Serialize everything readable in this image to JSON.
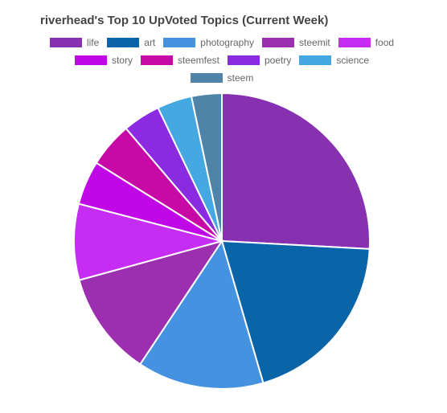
{
  "chart_data": {
    "type": "pie",
    "title": "riverhead's Top 10 UpVoted Topics (Current Week)",
    "categories": [
      "life",
      "art",
      "photography",
      "steemit",
      "food",
      "story",
      "steemfest",
      "poetry",
      "science",
      "steem"
    ],
    "values": [
      25.8,
      19.6,
      13.8,
      11.4,
      8.3,
      4.8,
      4.9,
      4.1,
      3.8,
      3.3
    ],
    "colors": [
      "#8731b0",
      "#0a64a8",
      "#4592e0",
      "#9b2fb0",
      "#c52ef2",
      "#c007e6",
      "#c70aa6",
      "#8a2be2",
      "#46a8e0",
      "#4f83a8"
    ]
  }
}
